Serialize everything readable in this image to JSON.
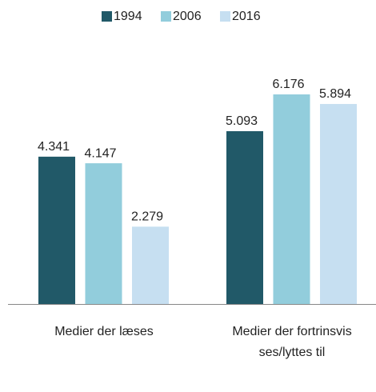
{
  "chart_data": {
    "type": "bar",
    "categories": [
      "Medier der læses",
      "Medier der fortrinsvis ses/lyttes til"
    ],
    "series": [
      {
        "name": "1994",
        "color": "#215968",
        "values": [
          4.341,
          5.093
        ]
      },
      {
        "name": "2006",
        "color": "#92cddc",
        "values": [
          4.147,
          6.176
        ]
      },
      {
        "name": "2016",
        "color": "#c6dff1",
        "values": [
          2.279,
          5.894
        ]
      }
    ],
    "legend": "top"
  }
}
